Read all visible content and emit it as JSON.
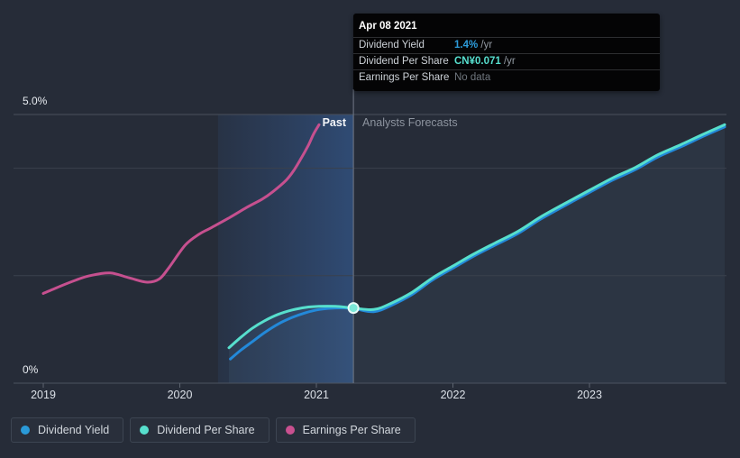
{
  "page": {
    "background": "#262c38"
  },
  "tooltip": {
    "date": "Apr 08 2021",
    "rows": [
      {
        "label": "Dividend Yield",
        "value": "1.4%",
        "suffix": " /yr",
        "value_color": "#2d9cdb"
      },
      {
        "label": "Dividend Per Share",
        "value": "CN¥0.071",
        "suffix": " /yr",
        "value_color": "#57dfcf"
      },
      {
        "label": "Earnings Per Share",
        "value": "No data",
        "suffix": "",
        "value_color": "#70777f"
      }
    ]
  },
  "region_labels": {
    "past": "Past",
    "forecast": "Analysts Forecasts"
  },
  "axis": {
    "y_top": "5.0%",
    "y_bottom": "0%",
    "years": [
      "2019",
      "2020",
      "2021",
      "2022",
      "2023"
    ]
  },
  "legend": {
    "items": [
      {
        "label": "Dividend Yield",
        "color": "#2a9ad8"
      },
      {
        "label": "Dividend Per Share",
        "color": "#57dfcd"
      },
      {
        "label": "Earnings Per Share",
        "color": "#c9508f"
      }
    ]
  },
  "chart_data": {
    "type": "line",
    "title": "Dividend history and forecast",
    "x_ticks": [
      2019,
      2020,
      2021,
      2022,
      2023
    ],
    "x_range": [
      2018.78,
      2024.0
    ],
    "y_range_pct": [
      0,
      5
    ],
    "y_unit": "%",
    "gridlines_pct": [
      5.0,
      4.0,
      2.0
    ],
    "grid": true,
    "legend_position": "bottom",
    "past_region": {
      "start": 2020.28,
      "end": 2021.271
    },
    "marker": {
      "x": 2021.271,
      "y": 1.4,
      "series": "Dividend Per Share",
      "date": "Apr 08 2021"
    },
    "series": [
      {
        "name": "Earnings Per Share",
        "key": "eps",
        "color": "#c6508f",
        "segment": "past",
        "points": [
          [
            2019.0,
            1.67
          ],
          [
            2019.13,
            1.81
          ],
          [
            2019.24,
            1.92
          ],
          [
            2019.34,
            2.0
          ],
          [
            2019.49,
            2.05
          ],
          [
            2019.63,
            1.96
          ],
          [
            2019.76,
            1.88
          ],
          [
            2019.85,
            1.94
          ],
          [
            2019.92,
            2.15
          ],
          [
            2020.04,
            2.57
          ],
          [
            2020.14,
            2.77
          ],
          [
            2020.22,
            2.88
          ],
          [
            2020.35,
            3.06
          ],
          [
            2020.49,
            3.27
          ],
          [
            2020.6,
            3.42
          ],
          [
            2020.68,
            3.56
          ],
          [
            2020.78,
            3.78
          ],
          [
            2020.84,
            3.98
          ],
          [
            2020.89,
            4.19
          ],
          [
            2020.94,
            4.42
          ],
          [
            2020.98,
            4.64
          ],
          [
            2021.02,
            4.81
          ]
        ]
      },
      {
        "name": "Dividend Yield",
        "key": "dy",
        "color": "#2389d9",
        "segment": "past+forecast",
        "points": [
          [
            2020.37,
            0.45
          ],
          [
            2020.45,
            0.62
          ],
          [
            2020.53,
            0.77
          ],
          [
            2020.62,
            0.94
          ],
          [
            2020.72,
            1.1
          ],
          [
            2020.82,
            1.22
          ],
          [
            2020.92,
            1.31
          ],
          [
            2021.02,
            1.37
          ],
          [
            2021.14,
            1.4
          ],
          [
            2021.271,
            1.39
          ],
          [
            2021.42,
            1.33
          ],
          [
            2021.55,
            1.45
          ],
          [
            2021.7,
            1.65
          ],
          [
            2021.85,
            1.92
          ],
          [
            2022.0,
            2.14
          ],
          [
            2022.15,
            2.36
          ],
          [
            2022.31,
            2.57
          ],
          [
            2022.48,
            2.79
          ],
          [
            2022.64,
            3.05
          ],
          [
            2022.81,
            3.29
          ],
          [
            2023.0,
            3.55
          ],
          [
            2023.17,
            3.78
          ],
          [
            2023.34,
            3.98
          ],
          [
            2023.5,
            4.21
          ],
          [
            2023.67,
            4.4
          ],
          [
            2023.83,
            4.59
          ],
          [
            2023.99,
            4.77
          ]
        ]
      },
      {
        "name": "Dividend Per Share",
        "key": "dps",
        "color": "#57dfcd",
        "segment": "past+forecast",
        "points": [
          [
            2020.36,
            0.66
          ],
          [
            2020.45,
            0.86
          ],
          [
            2020.53,
            1.02
          ],
          [
            2020.62,
            1.16
          ],
          [
            2020.72,
            1.28
          ],
          [
            2020.82,
            1.36
          ],
          [
            2020.92,
            1.41
          ],
          [
            2021.02,
            1.43
          ],
          [
            2021.14,
            1.43
          ],
          [
            2021.271,
            1.4
          ],
          [
            2021.42,
            1.37
          ],
          [
            2021.55,
            1.49
          ],
          [
            2021.7,
            1.69
          ],
          [
            2021.85,
            1.96
          ],
          [
            2022.0,
            2.18
          ],
          [
            2022.15,
            2.4
          ],
          [
            2022.31,
            2.61
          ],
          [
            2022.48,
            2.83
          ],
          [
            2022.64,
            3.09
          ],
          [
            2022.81,
            3.33
          ],
          [
            2023.0,
            3.59
          ],
          [
            2023.17,
            3.82
          ],
          [
            2023.34,
            4.02
          ],
          [
            2023.5,
            4.25
          ],
          [
            2023.67,
            4.44
          ],
          [
            2023.83,
            4.63
          ],
          [
            2023.99,
            4.81
          ]
        ]
      }
    ]
  }
}
